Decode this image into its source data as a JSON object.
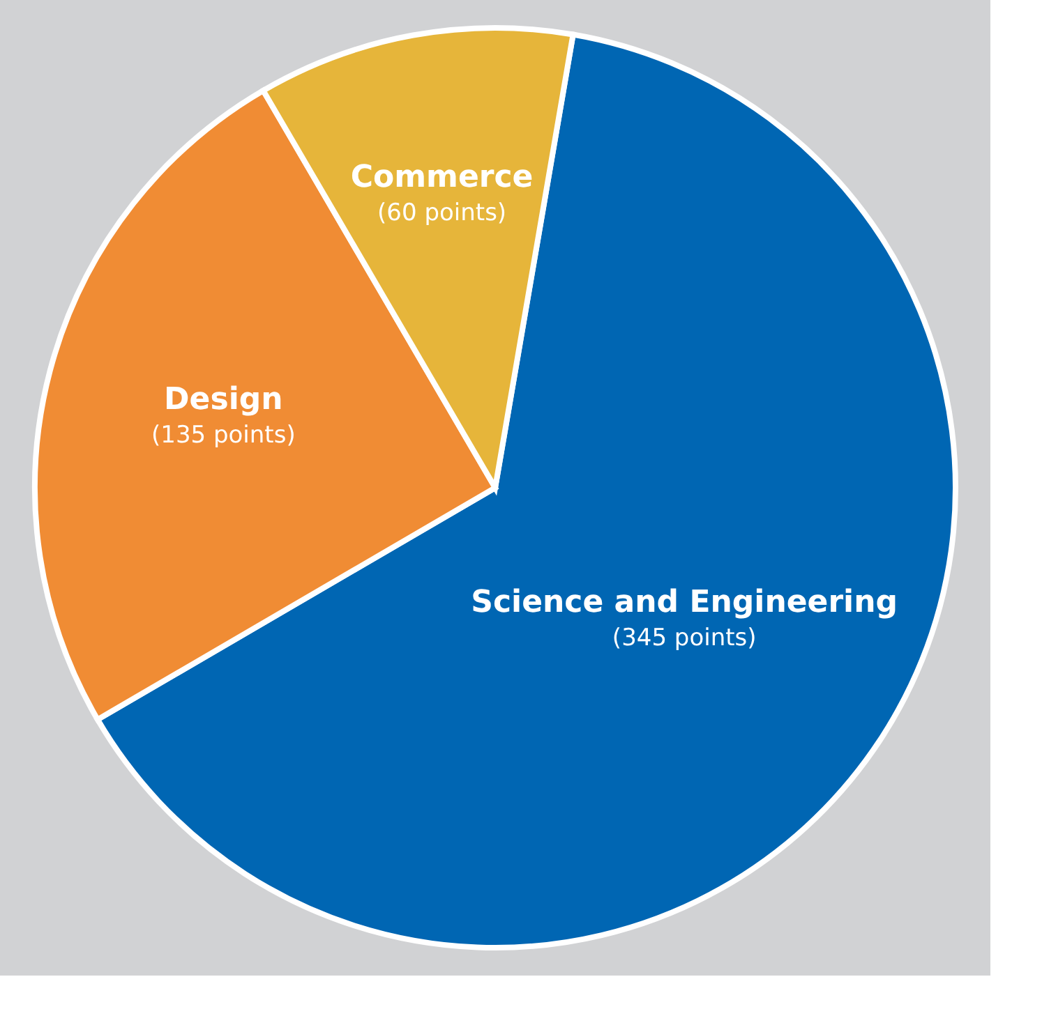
{
  "chart_data": {
    "type": "pie",
    "categories": [
      "Science and Engineering",
      "Design",
      "Commerce"
    ],
    "values": [
      345,
      135,
      60
    ],
    "colors": [
      "#0066b3",
      "#f08c34",
      "#e6b53a"
    ],
    "value_labels": [
      "(345 points)",
      "(135 points)",
      "(60 points)"
    ],
    "legend": false
  }
}
